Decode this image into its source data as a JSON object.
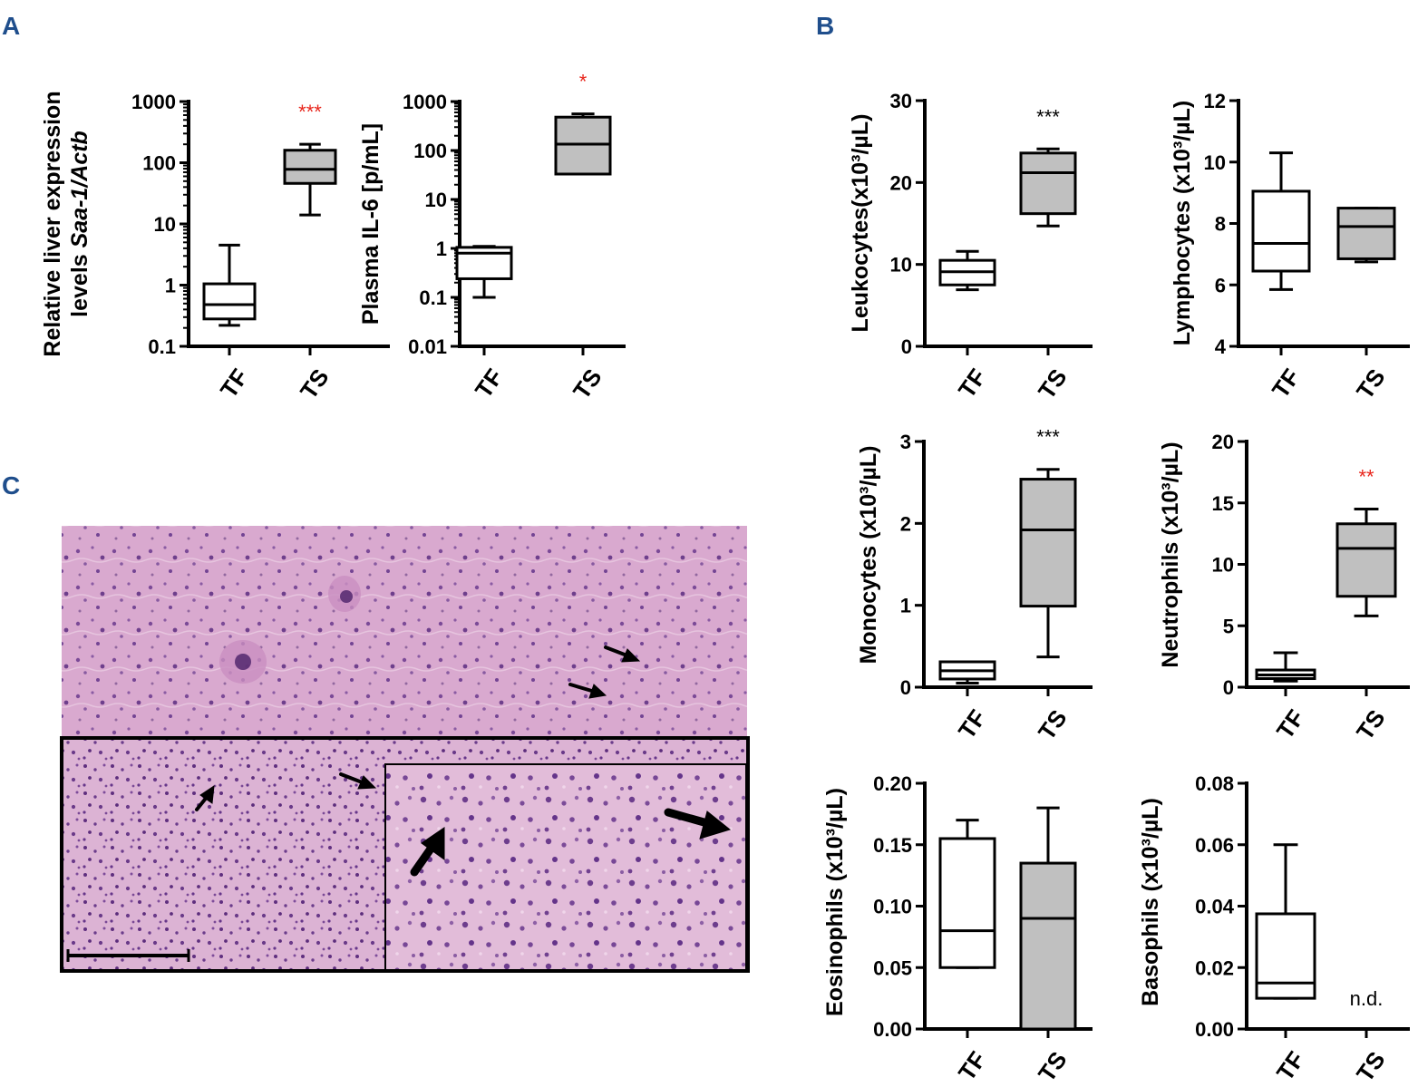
{
  "panels": {
    "a": "A",
    "b": "B",
    "c": "C"
  },
  "colors": {
    "ts_fill": "#c0c0c0",
    "tf_fill": "#ffffff",
    "significance_red": "#e8261c",
    "significance_black": "#000000",
    "panel_label": "#1f4e8c"
  },
  "image_panel": {
    "description_icon": "micrograph-image",
    "has_scale_bar": true,
    "has_inset": true
  },
  "chart_data": [
    {
      "id": "saa1",
      "type": "box",
      "ylabel_lines": [
        "Relative liver expression",
        "levels Saa-1/Actb"
      ],
      "ylog": true,
      "ylim": [
        0.1,
        1000
      ],
      "yticks": [
        "0.1",
        "1",
        "10",
        "100",
        "1000"
      ],
      "categories": [
        "TF",
        "TS"
      ],
      "boxes": [
        {
          "category": "TF",
          "min": 0.22,
          "q1": 0.28,
          "median": 0.48,
          "q3": 1.05,
          "max": 4.5
        },
        {
          "category": "TS",
          "min": 14,
          "q1": 46,
          "median": 78,
          "q3": 160,
          "max": 200
        }
      ],
      "significance": {
        "category": "TS",
        "label": "***",
        "color": "red"
      }
    },
    {
      "id": "il6",
      "type": "box",
      "ylabel_lines": [
        "Plasma IL-6 [p/mL]"
      ],
      "ylog": true,
      "ylim": [
        0.01,
        1000
      ],
      "yticks": [
        "0.01",
        "0.1",
        "1",
        "10",
        "100",
        "1000"
      ],
      "categories": [
        "TF",
        "TS"
      ],
      "boxes": [
        {
          "category": "TF",
          "min": 0.1,
          "q1": 0.24,
          "median": 0.8,
          "q3": 1.05,
          "max": 1.1
        },
        {
          "category": "TS",
          "min": 33,
          "q1": 33,
          "median": 135,
          "q3": 480,
          "max": 560
        }
      ],
      "significance": {
        "category": "TS",
        "label": "*",
        "color": "red"
      }
    },
    {
      "id": "leukocytes",
      "type": "box",
      "ylabel_lines": [
        "Leukocytes(x10³/µL)"
      ],
      "ylog": false,
      "ylim": [
        0,
        30
      ],
      "yticks": [
        "0",
        "10",
        "20",
        "30"
      ],
      "categories": [
        "TF",
        "TS"
      ],
      "boxes": [
        {
          "category": "TF",
          "min": 6.9,
          "q1": 7.5,
          "median": 9.1,
          "q3": 10.5,
          "max": 11.6
        },
        {
          "category": "TS",
          "min": 14.7,
          "q1": 16.2,
          "median": 21.2,
          "q3": 23.6,
          "max": 24.1
        }
      ],
      "significance": {
        "category": "TS",
        "label": "***",
        "color": "black"
      }
    },
    {
      "id": "lymphocytes",
      "type": "box",
      "ylabel_lines": [
        "Lymphocytes (x10³/µL)"
      ],
      "ylog": false,
      "ylim": [
        4,
        12
      ],
      "yticks": [
        "4",
        "6",
        "8",
        "10",
        "12"
      ],
      "categories": [
        "TF",
        "TS"
      ],
      "boxes": [
        {
          "category": "TF",
          "min": 5.85,
          "q1": 6.45,
          "median": 7.35,
          "q3": 9.05,
          "max": 10.3
        },
        {
          "category": "TS",
          "min": 6.75,
          "q1": 6.85,
          "median": 7.9,
          "q3": 8.5,
          "max": 8.5
        }
      ],
      "significance": null
    },
    {
      "id": "monocytes",
      "type": "box",
      "ylabel_lines": [
        "Monocytes (x10³/µL)"
      ],
      "ylog": false,
      "ylim": [
        0,
        3
      ],
      "yticks": [
        "0",
        "1",
        "2",
        "3"
      ],
      "categories": [
        "TF",
        "TS"
      ],
      "boxes": [
        {
          "category": "TF",
          "min": 0.05,
          "q1": 0.1,
          "median": 0.2,
          "q3": 0.31,
          "max": 0.31
        },
        {
          "category": "TS",
          "min": 0.37,
          "q1": 0.99,
          "median": 1.92,
          "q3": 2.54,
          "max": 2.66
        }
      ],
      "significance": {
        "category": "TS",
        "label": "***",
        "color": "black"
      }
    },
    {
      "id": "neutrophils",
      "type": "box",
      "ylabel_lines": [
        "Neutrophils (x10³/µL)"
      ],
      "ylog": false,
      "ylim": [
        0,
        20
      ],
      "yticks": [
        "0",
        "5",
        "10",
        "15",
        "20"
      ],
      "categories": [
        "TF",
        "TS"
      ],
      "boxes": [
        {
          "category": "TF",
          "min": 0.5,
          "q1": 0.7,
          "median": 1.0,
          "q3": 1.4,
          "max": 2.8
        },
        {
          "category": "TS",
          "min": 5.8,
          "q1": 7.4,
          "median": 11.3,
          "q3": 13.3,
          "max": 14.5
        }
      ],
      "significance": {
        "category": "TS",
        "label": "**",
        "color": "red"
      }
    },
    {
      "id": "eosinophils",
      "type": "box",
      "ylabel_lines": [
        "Eosinophils (x10³/µL)"
      ],
      "ylog": false,
      "ylim": [
        0,
        0.2
      ],
      "yticks": [
        "0.00",
        "0.05",
        "0.10",
        "0.15",
        "0.20"
      ],
      "categories": [
        "TF",
        "TS"
      ],
      "boxes": [
        {
          "category": "TF",
          "min": 0.05,
          "q1": 0.05,
          "median": 0.08,
          "q3": 0.155,
          "max": 0.17
        },
        {
          "category": "TS",
          "min": 0.0,
          "q1": 0.0,
          "median": 0.09,
          "q3": 0.135,
          "max": 0.18
        }
      ],
      "significance": null
    },
    {
      "id": "basophils",
      "type": "box",
      "ylabel_lines": [
        "Basophils (x10³/µL)"
      ],
      "ylog": false,
      "ylim": [
        0,
        0.08
      ],
      "yticks": [
        "0.00",
        "0.02",
        "0.04",
        "0.06",
        "0.08"
      ],
      "categories": [
        "TF",
        "TS"
      ],
      "boxes": [
        {
          "category": "TF",
          "min": 0.01,
          "q1": 0.01,
          "median": 0.015,
          "q3": 0.0375,
          "max": 0.06
        }
      ],
      "significance": null,
      "note": "n.d."
    }
  ]
}
